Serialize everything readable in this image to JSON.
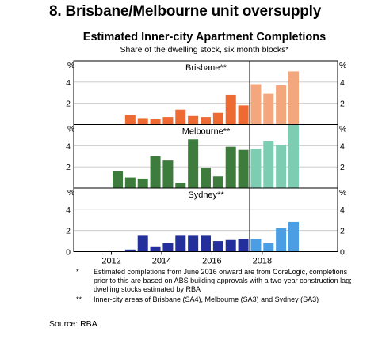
{
  "page": {
    "title": "8. Brisbane/Melbourne unit oversupply"
  },
  "chart_data": {
    "type": "bar",
    "title": "Estimated Inner-city Apartment Completions",
    "subtitle": "Share of the dwelling stock, six month blocks*",
    "unit_label": "%",
    "x_ticks": [
      "2012",
      "2014",
      "2016",
      "2018"
    ],
    "x_axis_note": "Each bar is a six month block; bars right of the 2016 divider are estimated (lighter colour)",
    "ylim": [
      0,
      6
    ],
    "y_ticks": [
      "0",
      "2",
      "4"
    ],
    "panels": [
      {
        "name": "Brisbane**",
        "color": "#ee6a33",
        "color_estimated": "#f4a67c",
        "values": [
          0,
          0.9,
          0.6,
          0.5,
          0.7,
          1.4,
          0.8,
          0.7,
          1.1,
          2.8,
          1.8
        ],
        "estimated": [
          3.8,
          2.9,
          3.7,
          5.0
        ]
      },
      {
        "name": "Melbourne**",
        "color": "#3d7c3d",
        "color_estimated": "#7dcdb2",
        "values": [
          1.6,
          1.0,
          0.9,
          3.0,
          2.6,
          0.5,
          4.6,
          1.9,
          1.1,
          3.9,
          3.6
        ],
        "estimated": [
          3.7,
          4.4,
          4.1,
          6.0
        ]
      },
      {
        "name": "Sydney**",
        "color": "#23309b",
        "color_estimated": "#4b9ee3",
        "values": [
          0,
          0.2,
          1.5,
          0.5,
          0.8,
          1.5,
          1.5,
          1.5,
          1.0,
          1.1,
          1.2
        ],
        "estimated": [
          1.2,
          0.8,
          2.2,
          2.8
        ]
      }
    ],
    "grid": true,
    "legend": "none"
  },
  "footnotes": [
    {
      "mark": "*",
      "text": "Estimated completions from June 2016 onward are from CoreLogic, completions prior to this are based on ABS building approvals with a two-year construction lag; dwelling stocks estimated by RBA"
    },
    {
      "mark": "**",
      "text": "Inner-city areas of Brisbane (SA4), Melbourne (SA3) and Sydney (SA3)"
    }
  ],
  "source": "Source: RBA"
}
